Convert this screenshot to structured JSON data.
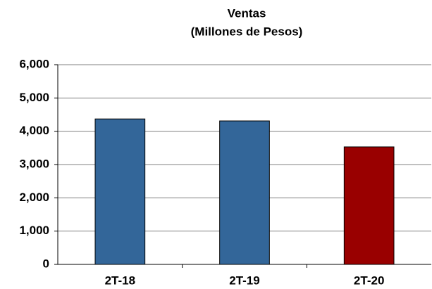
{
  "chart_data": {
    "type": "bar",
    "title": "Ventas",
    "subtitle": "(Millones de Pesos)",
    "categories": [
      "2T-18",
      "2T-19",
      "2T-20"
    ],
    "values": [
      4370,
      4310,
      3530
    ],
    "colors": [
      "#336699",
      "#336699",
      "#990000"
    ],
    "ylim": [
      0,
      6000
    ],
    "yticks": [
      0,
      {
        "value": 1000,
        "label": "1,000"
      },
      {
        "value": 2000,
        "label": "2,000"
      },
      {
        "value": 3000,
        "label": "3,000"
      },
      {
        "value": 4000,
        "label": "4,000"
      },
      {
        "value": 5000,
        "label": "5,000"
      },
      {
        "value": 6000,
        "label": "6,000"
      }
    ],
    "grid": true
  }
}
